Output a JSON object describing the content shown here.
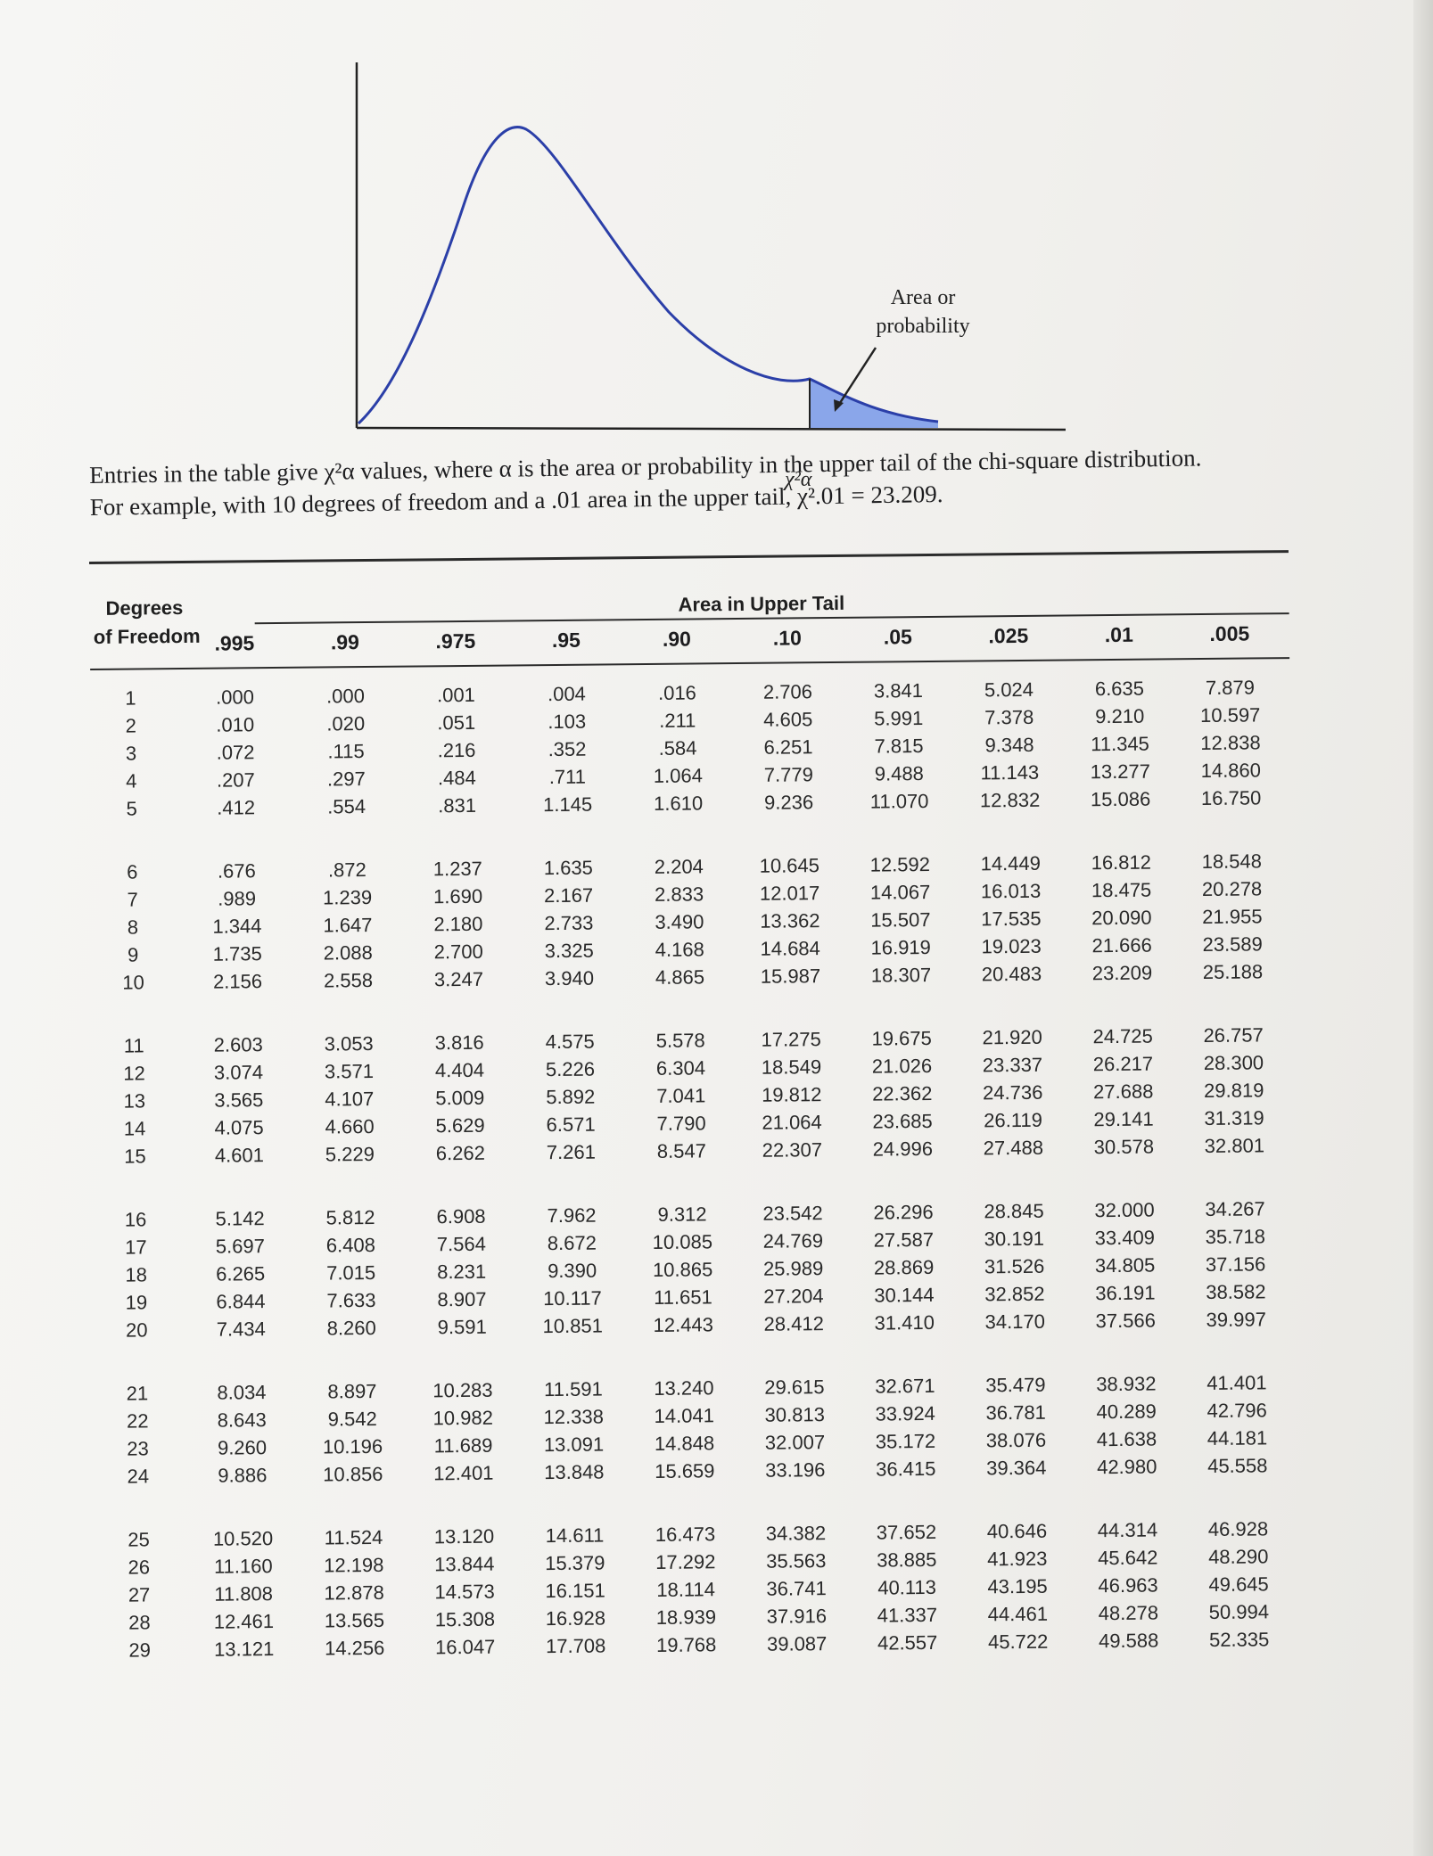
{
  "figure": {
    "callout_line1": "Area or",
    "callout_line2": "probability",
    "x_label": "χ²α",
    "shade_color": "#8aa6ea",
    "curve_color": "#2b3fa8"
  },
  "intro": {
    "line1": "Entries in the table give χ²α values, where α is the area or probability in the upper tail of the chi-square distribution.",
    "line2": "For example, with 10 degrees of freedom and a .01 area in the upper tail, χ².01 = 23.209."
  },
  "table": {
    "df_header_line1": "Degrees",
    "df_header_line2": "of Freedom",
    "area_header": "Area in Upper Tail",
    "columns": [
      ".995",
      ".99",
      ".975",
      ".95",
      ".90",
      ".10",
      ".05",
      ".025",
      ".01",
      ".005"
    ],
    "rows": [
      [
        "1",
        ".000",
        ".000",
        ".001",
        ".004",
        ".016",
        "2.706",
        "3.841",
        "5.024",
        "6.635",
        "7.879"
      ],
      [
        "2",
        ".010",
        ".020",
        ".051",
        ".103",
        ".211",
        "4.605",
        "5.991",
        "7.378",
        "9.210",
        "10.597"
      ],
      [
        "3",
        ".072",
        ".115",
        ".216",
        ".352",
        ".584",
        "6.251",
        "7.815",
        "9.348",
        "11.345",
        "12.838"
      ],
      [
        "4",
        ".207",
        ".297",
        ".484",
        ".711",
        "1.064",
        "7.779",
        "9.488",
        "11.143",
        "13.277",
        "14.860"
      ],
      [
        "5",
        ".412",
        ".554",
        ".831",
        "1.145",
        "1.610",
        "9.236",
        "11.070",
        "12.832",
        "15.086",
        "16.750"
      ],
      [
        "6",
        ".676",
        ".872",
        "1.237",
        "1.635",
        "2.204",
        "10.645",
        "12.592",
        "14.449",
        "16.812",
        "18.548"
      ],
      [
        "7",
        ".989",
        "1.239",
        "1.690",
        "2.167",
        "2.833",
        "12.017",
        "14.067",
        "16.013",
        "18.475",
        "20.278"
      ],
      [
        "8",
        "1.344",
        "1.647",
        "2.180",
        "2.733",
        "3.490",
        "13.362",
        "15.507",
        "17.535",
        "20.090",
        "21.955"
      ],
      [
        "9",
        "1.735",
        "2.088",
        "2.700",
        "3.325",
        "4.168",
        "14.684",
        "16.919",
        "19.023",
        "21.666",
        "23.589"
      ],
      [
        "10",
        "2.156",
        "2.558",
        "3.247",
        "3.940",
        "4.865",
        "15.987",
        "18.307",
        "20.483",
        "23.209",
        "25.188"
      ],
      [
        "11",
        "2.603",
        "3.053",
        "3.816",
        "4.575",
        "5.578",
        "17.275",
        "19.675",
        "21.920",
        "24.725",
        "26.757"
      ],
      [
        "12",
        "3.074",
        "3.571",
        "4.404",
        "5.226",
        "6.304",
        "18.549",
        "21.026",
        "23.337",
        "26.217",
        "28.300"
      ],
      [
        "13",
        "3.565",
        "4.107",
        "5.009",
        "5.892",
        "7.041",
        "19.812",
        "22.362",
        "24.736",
        "27.688",
        "29.819"
      ],
      [
        "14",
        "4.075",
        "4.660",
        "5.629",
        "6.571",
        "7.790",
        "21.064",
        "23.685",
        "26.119",
        "29.141",
        "31.319"
      ],
      [
        "15",
        "4.601",
        "5.229",
        "6.262",
        "7.261",
        "8.547",
        "22.307",
        "24.996",
        "27.488",
        "30.578",
        "32.801"
      ],
      [
        "16",
        "5.142",
        "5.812",
        "6.908",
        "7.962",
        "9.312",
        "23.542",
        "26.296",
        "28.845",
        "32.000",
        "34.267"
      ],
      [
        "17",
        "5.697",
        "6.408",
        "7.564",
        "8.672",
        "10.085",
        "24.769",
        "27.587",
        "30.191",
        "33.409",
        "35.718"
      ],
      [
        "18",
        "6.265",
        "7.015",
        "8.231",
        "9.390",
        "10.865",
        "25.989",
        "28.869",
        "31.526",
        "34.805",
        "37.156"
      ],
      [
        "19",
        "6.844",
        "7.633",
        "8.907",
        "10.117",
        "11.651",
        "27.204",
        "30.144",
        "32.852",
        "36.191",
        "38.582"
      ],
      [
        "20",
        "7.434",
        "8.260",
        "9.591",
        "10.851",
        "12.443",
        "28.412",
        "31.410",
        "34.170",
        "37.566",
        "39.997"
      ],
      [
        "21",
        "8.034",
        "8.897",
        "10.283",
        "11.591",
        "13.240",
        "29.615",
        "32.671",
        "35.479",
        "38.932",
        "41.401"
      ],
      [
        "22",
        "8.643",
        "9.542",
        "10.982",
        "12.338",
        "14.041",
        "30.813",
        "33.924",
        "36.781",
        "40.289",
        "42.796"
      ],
      [
        "23",
        "9.260",
        "10.196",
        "11.689",
        "13.091",
        "14.848",
        "32.007",
        "35.172",
        "38.076",
        "41.638",
        "44.181"
      ],
      [
        "24",
        "9.886",
        "10.856",
        "12.401",
        "13.848",
        "15.659",
        "33.196",
        "36.415",
        "39.364",
        "42.980",
        "45.558"
      ],
      [
        "25",
        "10.520",
        "11.524",
        "13.120",
        "14.611",
        "16.473",
        "34.382",
        "37.652",
        "40.646",
        "44.314",
        "46.928"
      ],
      [
        "26",
        "11.160",
        "12.198",
        "13.844",
        "15.379",
        "17.292",
        "35.563",
        "38.885",
        "41.923",
        "45.642",
        "48.290"
      ],
      [
        "27",
        "11.808",
        "12.878",
        "14.573",
        "16.151",
        "18.114",
        "36.741",
        "40.113",
        "43.195",
        "46.963",
        "49.645"
      ],
      [
        "28",
        "12.461",
        "13.565",
        "15.308",
        "16.928",
        "18.939",
        "37.916",
        "41.337",
        "44.461",
        "48.278",
        "50.994"
      ],
      [
        "29",
        "13.121",
        "14.256",
        "16.047",
        "17.708",
        "19.768",
        "39.087",
        "42.557",
        "45.722",
        "49.588",
        "52.335"
      ]
    ]
  }
}
